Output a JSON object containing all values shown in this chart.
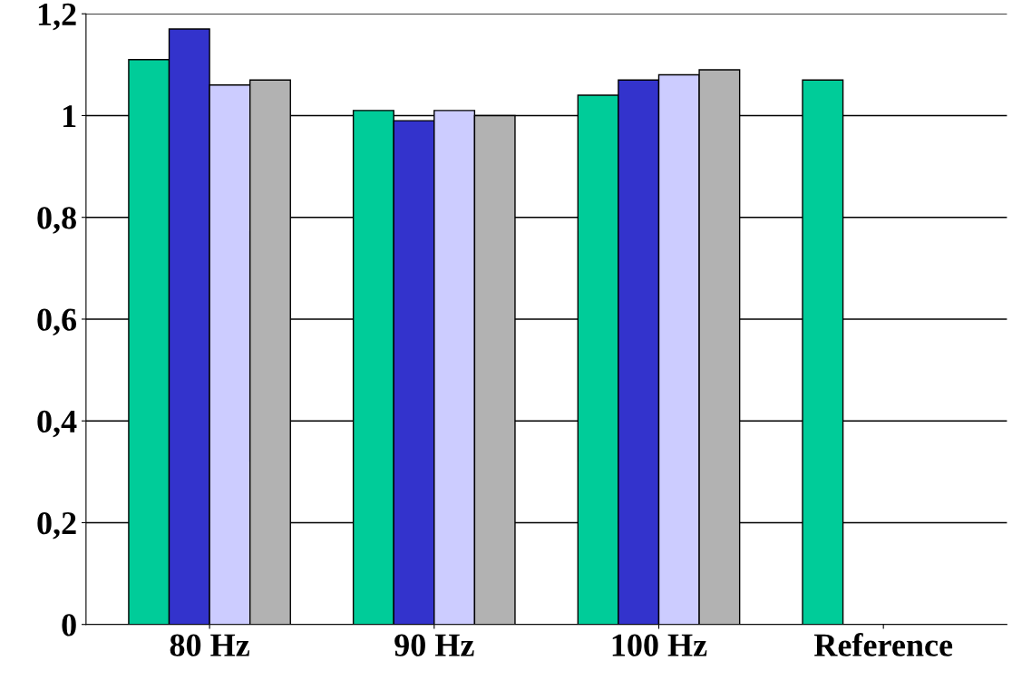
{
  "chart_data": {
    "type": "bar",
    "categories": [
      "80 Hz",
      "90 Hz",
      "100 Hz",
      "Reference"
    ],
    "series": [
      {
        "color": "#00cc99",
        "values": [
          1.11,
          1.01,
          1.04,
          1.07
        ]
      },
      {
        "color": "#3333cc",
        "values": [
          1.17,
          0.99,
          1.07,
          null
        ]
      },
      {
        "color": "#ccccff",
        "values": [
          1.06,
          1.01,
          1.08,
          null
        ]
      },
      {
        "color": "#b2b2b2",
        "values": [
          1.07,
          1.0,
          1.09,
          null
        ]
      }
    ],
    "ylim": [
      0,
      1.2
    ],
    "yticks": [
      0,
      {
        "value": 0.2,
        "label": "0,2"
      },
      {
        "value": 0.4,
        "label": "0,4"
      },
      {
        "value": 0.6,
        "label": "0,6"
      },
      {
        "value": 0.8,
        "label": "0,8"
      },
      1,
      {
        "value": 1.2,
        "label": "1,2"
      }
    ],
    "grid": "y"
  }
}
